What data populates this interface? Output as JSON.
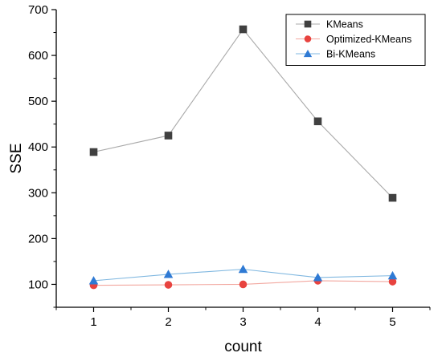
{
  "chart_data": {
    "type": "line",
    "title": "",
    "xlabel": "count",
    "ylabel": "SSE",
    "categories": [
      "1",
      "2",
      "3",
      "4",
      "5"
    ],
    "x": [
      1,
      2,
      3,
      4,
      5
    ],
    "xlim": [
      0.5,
      5.5
    ],
    "ylim": [
      50,
      700
    ],
    "yticks": [
      100,
      200,
      300,
      400,
      500,
      600,
      700
    ],
    "grid": false,
    "legend_position": "top-right",
    "series": [
      {
        "name": "KMeans",
        "values": [
          389,
          425,
          657,
          456,
          289
        ],
        "marker": "square",
        "marker_color": "#404040",
        "line_color": "#a9a9a9"
      },
      {
        "name": "Optimized-KMeans",
        "values": [
          98,
          99,
          100,
          108,
          106
        ],
        "marker": "circle",
        "marker_color": "#e8433f",
        "line_color": "#f2a8a0"
      },
      {
        "name": "Bi-KMeans",
        "values": [
          108,
          122,
          133,
          115,
          119
        ],
        "marker": "triangle",
        "marker_color": "#2f7ad4",
        "line_color": "#7fb7e0"
      }
    ]
  }
}
